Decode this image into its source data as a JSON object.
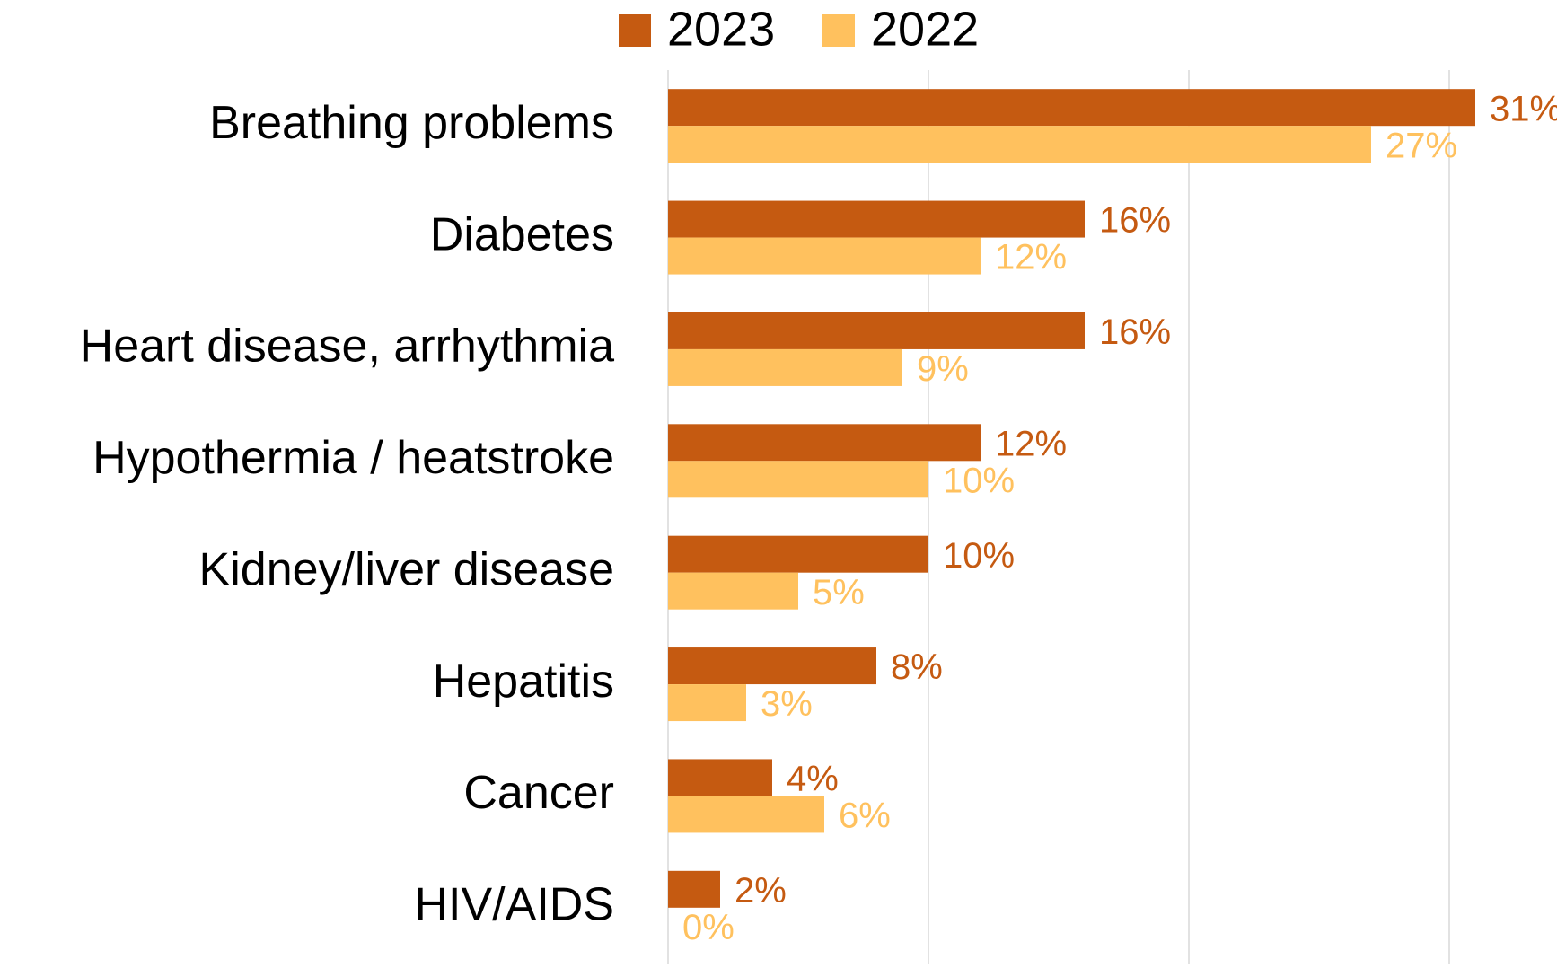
{
  "chart_data": {
    "type": "hbar",
    "categories": [
      "Breathing problems",
      "Diabetes",
      "Heart disease, arrhythmia",
      "Hypothermia / heatstroke",
      "Kidney/liver disease",
      "Hepatitis",
      "Cancer",
      "HIV/AIDS"
    ],
    "series": [
      {
        "name": "2023",
        "color": "#C55A11",
        "values": [
          31,
          16,
          16,
          12,
          10,
          8,
          4,
          2
        ],
        "value_labels": [
          "31%",
          "16%",
          "16%",
          "12%",
          "10%",
          "8%",
          "4%",
          "2%"
        ]
      },
      {
        "name": "2022",
        "color": "#FFC15E",
        "values": [
          27,
          12,
          9,
          10,
          5,
          3,
          6,
          0
        ],
        "value_labels": [
          "27%",
          "12%",
          "9%",
          "10%",
          "5%",
          "3%",
          "6%",
          "0%"
        ]
      }
    ],
    "xlim": [
      0,
      34
    ],
    "xticks": [
      0,
      10,
      20,
      30
    ],
    "grid": true,
    "legend": "top"
  }
}
